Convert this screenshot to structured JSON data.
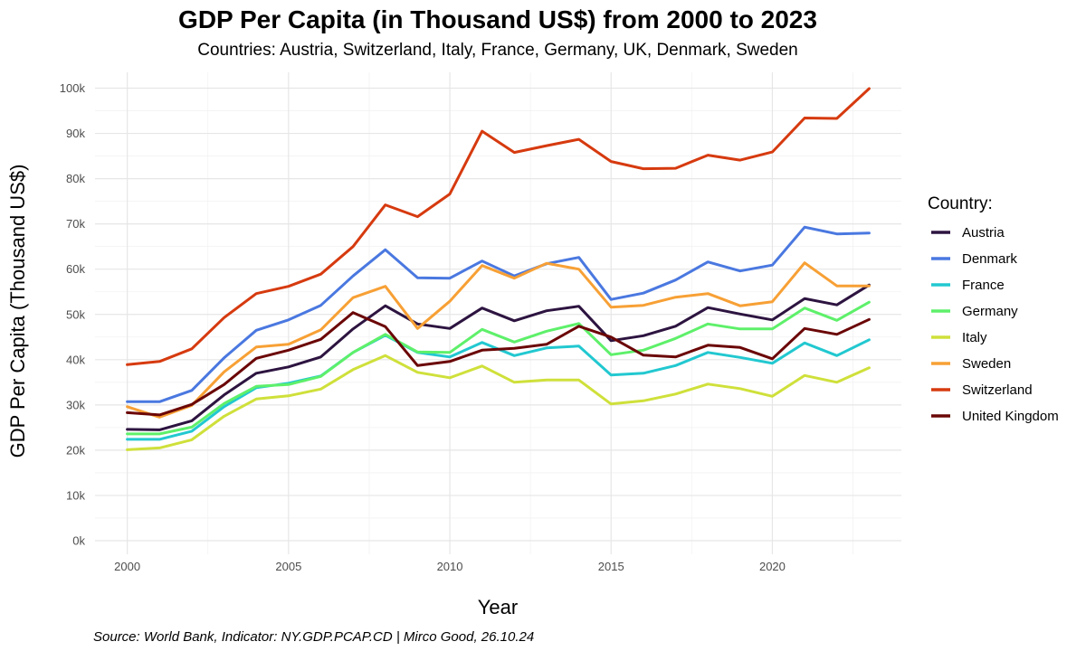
{
  "colors": {
    "Austria": "#2d1440",
    "Denmark": "#4a78e0",
    "France": "#22c8d0",
    "Germany": "#5ef06a",
    "Italy": "#cfe03a",
    "Sweden": "#f7a035",
    "Switzerland": "#d63a0f",
    "United Kingdom": "#6b0606"
  },
  "chart_data": {
    "type": "line",
    "title": "GDP Per Capita (in Thousand US$) from 2000 to 2023",
    "subtitle": "Countries: Austria, Switzerland, Italy, France, Germany, UK, Denmark, Sweden",
    "xlabel": "Year",
    "ylabel": "GDP Per Capita (Thousand US$)",
    "caption": "Source: World Bank, Indicator: NY.GDP.PCAP.CD | Mirco Good, 26.10.24",
    "xlim": [
      1999.0,
      2024.0
    ],
    "ylim": [
      -3000,
      103500
    ],
    "x_ticks": [
      2000,
      2005,
      2010,
      2015,
      2020
    ],
    "x_tick_labels": [
      "2000",
      "2005",
      "2010",
      "2015",
      "2020"
    ],
    "y_ticks": [
      0,
      10000,
      20000,
      30000,
      40000,
      50000,
      60000,
      70000,
      80000,
      90000,
      100000
    ],
    "y_tick_labels": [
      "0k",
      "10k",
      "20k",
      "30k",
      "40k",
      "50k",
      "60k",
      "70k",
      "80k",
      "90k",
      "100k"
    ],
    "legend_title": "Country:",
    "legend_position": "right",
    "grid": true,
    "x": [
      2000,
      2001,
      2002,
      2003,
      2004,
      2005,
      2006,
      2007,
      2008,
      2009,
      2010,
      2011,
      2012,
      2013,
      2014,
      2015,
      2016,
      2017,
      2018,
      2019,
      2020,
      2021,
      2022,
      2023
    ],
    "series": [
      {
        "name": "Austria",
        "values": [
          24600,
          24500,
          26500,
          32200,
          37000,
          38400,
          40600,
          46800,
          51900,
          47900,
          46900,
          51400,
          48600,
          50800,
          51800,
          44200,
          45300,
          47400,
          51500,
          50100,
          48800,
          53500,
          52100,
          56500
        ]
      },
      {
        "name": "Denmark",
        "values": [
          30700,
          30700,
          33200,
          40400,
          46500,
          48800,
          52000,
          58500,
          64300,
          58100,
          58000,
          61800,
          58500,
          61200,
          62600,
          53300,
          54700,
          57600,
          61600,
          59600,
          60900,
          69300,
          67800,
          68000
        ]
      },
      {
        "name": "France",
        "values": [
          22400,
          22400,
          24200,
          29600,
          33800,
          34800,
          36400,
          41600,
          45400,
          41600,
          40600,
          43800,
          40900,
          42600,
          43000,
          36600,
          37000,
          38700,
          41600,
          40500,
          39200,
          43700,
          40900,
          44400
        ]
      },
      {
        "name": "Germany",
        "values": [
          23600,
          23600,
          25100,
          30300,
          34100,
          34500,
          36300,
          41600,
          45600,
          41700,
          41600,
          46700,
          43900,
          46300,
          48000,
          41100,
          42100,
          44700,
          47900,
          46800,
          46800,
          51400,
          48700,
          52700
        ]
      },
      {
        "name": "Italy",
        "values": [
          20100,
          20500,
          22300,
          27500,
          31300,
          32000,
          33500,
          37800,
          40900,
          37200,
          36000,
          38600,
          35000,
          35500,
          35500,
          30200,
          30900,
          32400,
          34600,
          33600,
          31900,
          36500,
          35000,
          38200
        ]
      },
      {
        "name": "Sweden",
        "values": [
          29600,
          27300,
          29900,
          37300,
          42800,
          43400,
          46600,
          53700,
          56200,
          46900,
          52900,
          60800,
          58000,
          61300,
          60000,
          51600,
          52000,
          53800,
          54600,
          51900,
          52800,
          61400,
          56300,
          56300
        ]
      },
      {
        "name": "Switzerland",
        "values": [
          38900,
          39600,
          42400,
          49300,
          54600,
          56200,
          58900,
          65000,
          74200,
          71600,
          76600,
          90500,
          85800,
          87300,
          88700,
          83800,
          82200,
          82300,
          85200,
          84100,
          85900,
          93400,
          93300,
          99900
        ]
      },
      {
        "name": "United Kingdom",
        "values": [
          28300,
          27800,
          30100,
          34500,
          40300,
          42100,
          44500,
          50400,
          47300,
          38700,
          39600,
          42100,
          42500,
          43400,
          47400,
          45000,
          41000,
          40600,
          43200,
          42700,
          40200,
          46900,
          45600,
          48900
        ]
      }
    ]
  }
}
